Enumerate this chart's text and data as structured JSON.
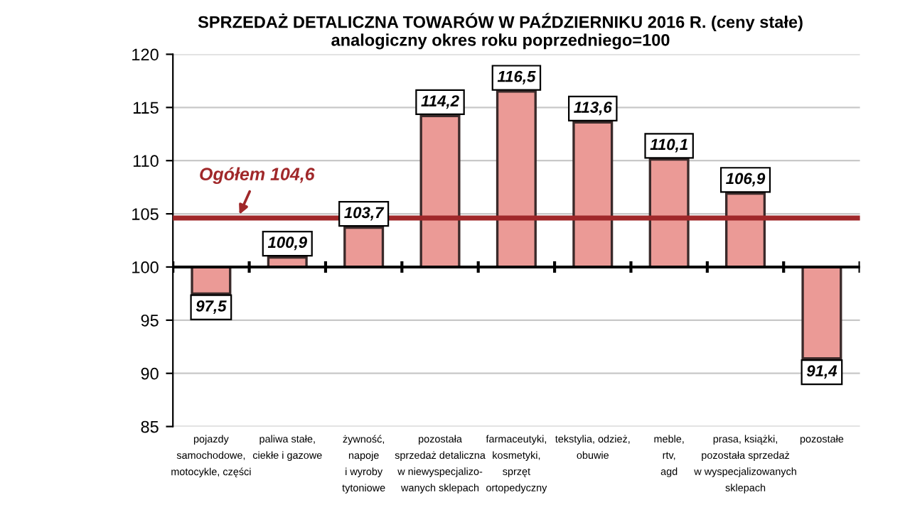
{
  "chart_data": {
    "type": "bar",
    "title": "SPRZEDAŻ DETALICZNA TOWARÓW W PAŹDZIERNIKU 2016 R. (ceny stałe)",
    "subtitle": "analogiczny okres roku poprzedniego=100",
    "categories": [
      "pojazdy\nsamochodowe,\nmotocykle, części",
      "paliwa stałe,\nciekłe i gazowe",
      "żywność,\nnapoje\ni wyroby\ntytoniowe",
      "pozostała\nsprzedaż detaliczna\nw niewyspecjalizo-\nwanych sklepach",
      "farmaceutyki,\nkosmetyki,\nsprzęt\nortopedyczny",
      "tekstylia, odzież,\nobuwie",
      "meble,\nrtv,\nagd",
      "prasa, książki,\npozostała sprzedaż\nw wyspecjalizowanych\nsklepach",
      "pozostałe"
    ],
    "base": [
      100,
      100,
      100,
      100,
      100,
      100,
      100,
      100,
      100
    ],
    "values": [
      -2.5,
      0.9,
      3.7,
      14.2,
      16.5,
      13.6,
      10.1,
      6.9,
      -8.6
    ],
    "value_labels": [
      "97,5",
      "100,9",
      "103,7",
      "114,2",
      "116,5",
      "113,6",
      "110,1",
      "106,9",
      "91,4"
    ],
    "color": "#eb9a96",
    "ylim": [
      85,
      120
    ],
    "yticks": [
      85,
      90,
      95,
      100,
      105,
      110,
      115,
      120
    ],
    "grid": "y",
    "ref_lines": [
      {
        "axis": "y",
        "value": 100,
        "color": "#000000",
        "line_style": "solid"
      },
      {
        "axis": "y",
        "value": 104.6,
        "label": "Ogółem 104,6",
        "color": "#a0282a",
        "line_style": "solid"
      }
    ]
  }
}
